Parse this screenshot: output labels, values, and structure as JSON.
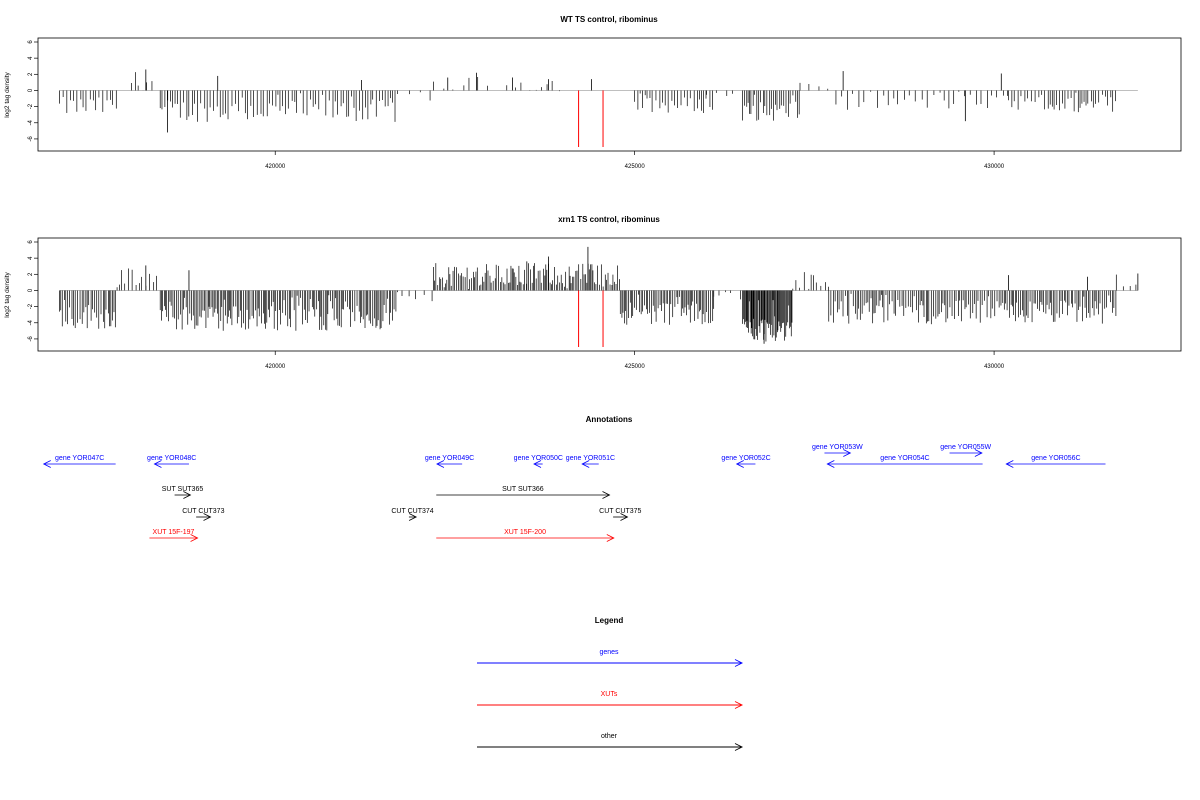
{
  "colors": {
    "genes": "#0000ff",
    "xuts": "#ff0000",
    "other": "#000000",
    "axis": "#000000",
    "baseline": "#999999"
  },
  "chart_data": [
    {
      "type": "bar",
      "title": "WT TS control, ribominus",
      "ylabel": "log2 tag density",
      "xlim": [
        416700,
        432600
      ],
      "ylim": [
        -7,
        6
      ],
      "xticks": [
        420000,
        425000,
        430000
      ],
      "yticks": [
        -6,
        -4,
        -2,
        0,
        2,
        4,
        6
      ],
      "data_range": [
        417000,
        432000
      ],
      "red_markers_x": [
        424220,
        424560
      ],
      "segments": [
        {
          "x0": 417000,
          "x1": 417800,
          "mean": -2.0,
          "range": 1.2,
          "step": 45
        },
        {
          "x0": 418000,
          "x1": 418300,
          "mean": 1.2,
          "range": 1.2,
          "step": 60
        },
        {
          "x0": 418400,
          "x1": 421700,
          "mean": -2.5,
          "range": 1.4,
          "step": 40
        },
        {
          "x0": 421700,
          "x1": 422200,
          "mean": -0.8,
          "range": 0.6,
          "step": 120
        },
        {
          "x0": 422200,
          "x1": 424000,
          "mean": 0.8,
          "range": 0.9,
          "step": 110
        },
        {
          "x0": 425000,
          "x1": 426100,
          "mean": -1.8,
          "range": 1.0,
          "step": 40
        },
        {
          "x0": 426000,
          "x1": 426400,
          "mean": -0.5,
          "range": 0.5,
          "step": 120
        },
        {
          "x0": 426500,
          "x1": 427300,
          "mean": -2.6,
          "range": 1.2,
          "step": 30
        },
        {
          "x0": 427300,
          "x1": 427800,
          "mean": 0.6,
          "range": 0.8,
          "step": 150
        },
        {
          "x0": 427800,
          "x1": 430200,
          "mean": -1.4,
          "range": 1.0,
          "step": 70
        },
        {
          "x0": 430200,
          "x1": 431700,
          "mean": -1.8,
          "range": 1.0,
          "step": 40
        }
      ],
      "spikes": [
        {
          "x": 418200,
          "y": 2.6
        },
        {
          "x": 419200,
          "y": 1.8
        },
        {
          "x": 421200,
          "y": 1.3
        },
        {
          "x": 422800,
          "y": 2.2
        },
        {
          "x": 422400,
          "y": 1.6
        },
        {
          "x": 423300,
          "y": 1.6
        },
        {
          "x": 423800,
          "y": 1.4
        },
        {
          "x": 424400,
          "y": 1.4
        },
        {
          "x": 427900,
          "y": 2.4
        },
        {
          "x": 430100,
          "y": 2.1
        },
        {
          "x": 418500,
          "y": -5.2
        },
        {
          "x": 429600,
          "y": -3.8
        }
      ]
    },
    {
      "type": "bar",
      "title": "xrn1 TS control, ribominus",
      "ylabel": "log2 tag density",
      "xlim": [
        416700,
        432600
      ],
      "ylim": [
        -7,
        6
      ],
      "xticks": [
        420000,
        425000,
        430000
      ],
      "yticks": [
        -6,
        -4,
        -2,
        0,
        2,
        4,
        6
      ],
      "data_range": [
        417000,
        432000
      ],
      "red_markers_x": [
        424220,
        424560
      ],
      "segments": [
        {
          "x0": 417000,
          "x1": 417800,
          "mean": -3.2,
          "range": 1.6,
          "step": 25
        },
        {
          "x0": 417800,
          "x1": 418400,
          "mean": 1.5,
          "range": 1.3,
          "step": 45
        },
        {
          "x0": 418400,
          "x1": 421700,
          "mean": -3.4,
          "range": 1.6,
          "step": 22
        },
        {
          "x0": 421700,
          "x1": 422200,
          "mean": -1.0,
          "range": 0.8,
          "step": 90
        },
        {
          "x0": 422200,
          "x1": 424800,
          "mean": 2.0,
          "range": 1.4,
          "step": 22
        },
        {
          "x0": 424800,
          "x1": 426100,
          "mean": -2.8,
          "range": 1.5,
          "step": 22
        },
        {
          "x0": 426100,
          "x1": 426500,
          "mean": -0.6,
          "range": 0.5,
          "step": 100
        },
        {
          "x0": 426500,
          "x1": 427200,
          "mean": -4.8,
          "range": 1.6,
          "step": 12
        },
        {
          "x0": 427200,
          "x1": 427700,
          "mean": 1.4,
          "range": 1.2,
          "step": 50
        },
        {
          "x0": 427700,
          "x1": 431700,
          "mean": -2.7,
          "range": 1.5,
          "step": 25
        },
        {
          "x0": 431700,
          "x1": 432000,
          "mean": 1.4,
          "range": 1.0,
          "step": 70
        }
      ],
      "spikes": [
        {
          "x": 424350,
          "y": 5.4
        },
        {
          "x": 423800,
          "y": 4.2
        },
        {
          "x": 423500,
          "y": 3.6
        },
        {
          "x": 426800,
          "y": -6.6
        },
        {
          "x": 418200,
          "y": 3.1
        },
        {
          "x": 418800,
          "y": 2.5
        },
        {
          "x": 430200,
          "y": 1.9
        },
        {
          "x": 431300,
          "y": 1.7
        },
        {
          "x": 432000,
          "y": 2.1
        }
      ]
    }
  ],
  "annotations": {
    "title": "Annotations",
    "xlim": [
      416700,
      432600
    ],
    "features": [
      {
        "label": "gene YOR047C",
        "x0": 417780,
        "x1": 416780,
        "row": 0,
        "color": "genes"
      },
      {
        "label": "gene YOR048C",
        "x0": 418800,
        "x1": 418320,
        "row": 0,
        "color": "genes"
      },
      {
        "label": "gene YOR049C",
        "x0": 422600,
        "x1": 422250,
        "row": 0,
        "color": "genes"
      },
      {
        "label": "gene YOR050C",
        "x0": 423720,
        "x1": 423600,
        "row": 0,
        "color": "genes"
      },
      {
        "label": "gene YOR051C",
        "x0": 424500,
        "x1": 424270,
        "row": 0,
        "color": "genes"
      },
      {
        "label": "gene YOR052C",
        "x0": 426680,
        "x1": 426420,
        "row": 0,
        "color": "genes"
      },
      {
        "label": "gene YOR053W",
        "x0": 427640,
        "x1": 428000,
        "row": -1,
        "color": "genes"
      },
      {
        "label": "gene YOR054C",
        "x0": 429840,
        "x1": 427680,
        "row": 0,
        "color": "genes"
      },
      {
        "label": "gene YOR055W",
        "x0": 429380,
        "x1": 429830,
        "row": -1,
        "color": "genes"
      },
      {
        "label": "gene YOR056C",
        "x0": 431550,
        "x1": 430170,
        "row": 0,
        "color": "genes"
      },
      {
        "label": "SUT SUT365",
        "x0": 418600,
        "x1": 418820,
        "row": 1,
        "color": "other"
      },
      {
        "label": "SUT SUT366",
        "x0": 422240,
        "x1": 424650,
        "row": 1,
        "color": "other"
      },
      {
        "label": "CUT CUT373",
        "x0": 418900,
        "x1": 419100,
        "row": 2,
        "color": "other"
      },
      {
        "label": "CUT CUT374",
        "x0": 421860,
        "x1": 421960,
        "row": 2,
        "color": "other"
      },
      {
        "label": "CUT CUT375",
        "x0": 424700,
        "x1": 424900,
        "row": 2,
        "color": "other"
      },
      {
        "label": "XUT 15F-197",
        "x0": 418250,
        "x1": 418920,
        "row": 3,
        "color": "xuts"
      },
      {
        "label": "XUT 15F-200",
        "x0": 422240,
        "x1": 424710,
        "row": 3,
        "color": "xuts"
      }
    ]
  },
  "legend": {
    "title": "Legend",
    "items": [
      {
        "label": "genes",
        "color": "genes"
      },
      {
        "label": "XUTs",
        "color": "xuts"
      },
      {
        "label": "other",
        "color": "other"
      }
    ]
  }
}
